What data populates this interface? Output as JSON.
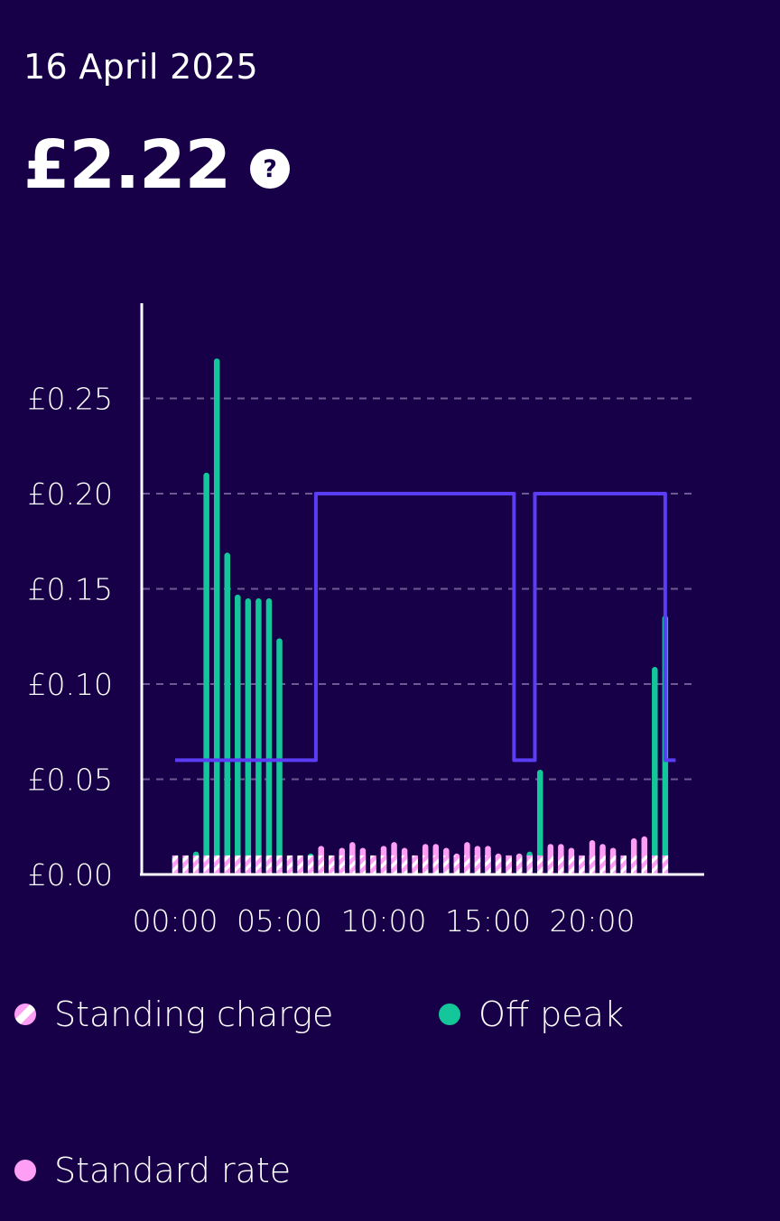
{
  "date": "16 April 2025",
  "total": "£2.22",
  "help_icon": "question-mark-icon",
  "help_symbol": "?",
  "colors": {
    "background": "#180048",
    "off_peak": "#14c79a",
    "standard_rate": "#ff9ef5",
    "standing_charge": "#ffffff",
    "unit_rate_line": "#5b3df5",
    "grid": "#6d5a92"
  },
  "legend": [
    {
      "label": "Standing charge",
      "swatch": "striped-pink-white"
    },
    {
      "label": "Off peak",
      "swatch": "green-dot"
    },
    {
      "label": "Standard rate",
      "swatch": "pink-dot"
    }
  ],
  "chart_data": {
    "type": "bar",
    "title": "",
    "xlabel": "",
    "ylabel": "",
    "ylim": [
      0,
      0.3
    ],
    "yticks": [
      "£0.00",
      "£0.05",
      "£0.10",
      "£0.15",
      "£0.20",
      "£0.25"
    ],
    "ytick_values": [
      0,
      0.05,
      0.1,
      0.15,
      0.2,
      0.25
    ],
    "xticks": [
      "00:00",
      "05:00",
      "10:00",
      "15:00",
      "20:00"
    ],
    "xtick_values": [
      0,
      5,
      10,
      15,
      20
    ],
    "grid": true,
    "legend_position": "bottom",
    "standing_charge_per_halfhour": 0.01,
    "x": [
      0,
      0.5,
      1,
      1.5,
      2,
      2.5,
      3,
      3.5,
      4,
      4.5,
      5,
      5.5,
      6,
      6.5,
      7,
      7.5,
      8,
      8.5,
      9,
      9.5,
      10,
      10.5,
      11,
      11.5,
      12,
      12.5,
      13,
      13.5,
      14,
      14.5,
      15,
      15.5,
      16,
      16.5,
      17,
      17.5,
      18,
      18.5,
      19,
      19.5,
      20,
      20.5,
      21,
      21.5,
      22,
      22.5,
      23,
      23.5
    ],
    "series": [
      {
        "name": "Off peak",
        "values": [
          0.01,
          0.01,
          0.012,
          0.211,
          0.271,
          0.169,
          0.147,
          0.145,
          0.145,
          0.145,
          0.124,
          0.009,
          0.009,
          0.011,
          null,
          null,
          null,
          null,
          null,
          null,
          null,
          null,
          null,
          null,
          null,
          null,
          null,
          null,
          null,
          null,
          null,
          null,
          null,
          null,
          0.012,
          0.055,
          null,
          null,
          null,
          null,
          null,
          null,
          null,
          null,
          null,
          null,
          0.109,
          0.136
        ]
      },
      {
        "name": "Standard rate",
        "values": [
          null,
          null,
          null,
          null,
          null,
          null,
          null,
          null,
          null,
          null,
          null,
          null,
          null,
          null,
          0.015,
          0.01,
          0.014,
          0.017,
          0.014,
          0.01,
          0.015,
          0.017,
          0.014,
          0.01,
          0.016,
          0.016,
          0.014,
          0.011,
          0.017,
          0.015,
          0.015,
          0.011,
          0.01,
          0.011,
          null,
          null,
          0.016,
          0.016,
          0.014,
          0.01,
          0.018,
          0.016,
          0.014,
          0.01,
          0.019,
          0.02,
          null,
          null
        ]
      }
    ],
    "unit_rate_steps": [
      {
        "from": 0,
        "to": 6.75,
        "value": 0.06
      },
      {
        "from": 6.75,
        "to": 16.25,
        "value": 0.2
      },
      {
        "from": 16.25,
        "to": 17.25,
        "value": 0.06
      },
      {
        "from": 17.25,
        "to": 23.5,
        "value": 0.2
      },
      {
        "from": 23.5,
        "to": 24,
        "value": 0.06
      }
    ]
  }
}
